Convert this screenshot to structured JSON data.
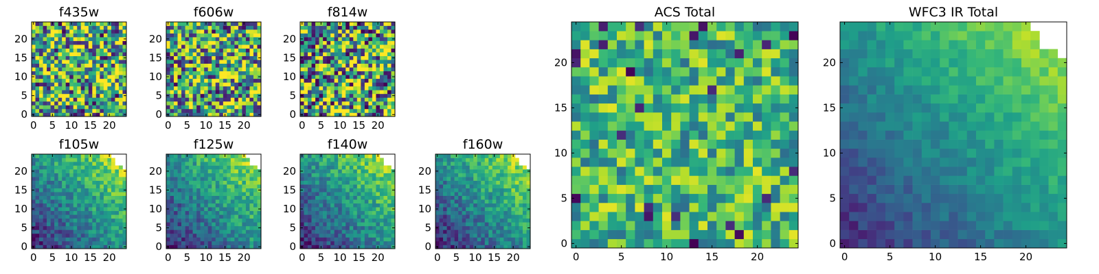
{
  "chart_data": [
    {
      "type": "heatmap",
      "title": "f435w",
      "xlim": [
        0,
        24
      ],
      "ylim": [
        0,
        24
      ],
      "xticks": [
        0,
        5,
        10,
        15,
        20
      ],
      "yticks": [
        0,
        5,
        10,
        15,
        20
      ],
      "xtick_labels": [
        "0",
        "5",
        "10",
        "15",
        "20"
      ],
      "ytick_labels": [
        "0",
        "5",
        "10",
        "15",
        "20"
      ],
      "pattern": "noise",
      "level": 0.62,
      "spread": 0.55,
      "corner_mask": false,
      "seed": 11
    },
    {
      "type": "heatmap",
      "title": "f606w",
      "xlim": [
        0,
        24
      ],
      "ylim": [
        0,
        24
      ],
      "xticks": [
        0,
        5,
        10,
        15,
        20
      ],
      "yticks": [
        0,
        5,
        10,
        15,
        20
      ],
      "xtick_labels": [
        "0",
        "5",
        "10",
        "15",
        "20"
      ],
      "ytick_labels": [
        "0",
        "5",
        "10",
        "15",
        "20"
      ],
      "pattern": "noise",
      "level": 0.62,
      "spread": 0.55,
      "corner_mask": false,
      "seed": 23
    },
    {
      "type": "heatmap",
      "title": "f814w",
      "xlim": [
        0,
        24
      ],
      "ylim": [
        0,
        24
      ],
      "xticks": [
        0,
        5,
        10,
        15,
        20
      ],
      "yticks": [
        0,
        5,
        10,
        15,
        20
      ],
      "xtick_labels": [
        "0",
        "5",
        "10",
        "15",
        "20"
      ],
      "ytick_labels": [
        "0",
        "5",
        "10",
        "15",
        "20"
      ],
      "pattern": "noise",
      "level": 0.58,
      "spread": 0.6,
      "corner_mask": false,
      "seed": 37
    },
    {
      "type": "heatmap",
      "title": "f105w",
      "xlim": [
        0,
        24
      ],
      "ylim": [
        0,
        24
      ],
      "xticks": [
        0,
        5,
        10,
        15,
        20
      ],
      "yticks": [
        0,
        5,
        10,
        15,
        20
      ],
      "xtick_labels": [
        "0",
        "5",
        "10",
        "15",
        "20"
      ],
      "ytick_labels": [
        "0",
        "5",
        "10",
        "15",
        "20"
      ],
      "pattern": "gradient",
      "level": 0.6,
      "spread": 0.35,
      "corner_mask": true,
      "seed": 41
    },
    {
      "type": "heatmap",
      "title": "f125w",
      "xlim": [
        0,
        24
      ],
      "ylim": [
        0,
        24
      ],
      "xticks": [
        0,
        5,
        10,
        15,
        20
      ],
      "yticks": [
        0,
        5,
        10,
        15,
        20
      ],
      "xtick_labels": [
        "0",
        "5",
        "10",
        "15",
        "20"
      ],
      "ytick_labels": [
        "0",
        "5",
        "10",
        "15",
        "20"
      ],
      "pattern": "gradient",
      "level": 0.55,
      "spread": 0.35,
      "corner_mask": true,
      "seed": 53
    },
    {
      "type": "heatmap",
      "title": "f140w",
      "xlim": [
        0,
        24
      ],
      "ylim": [
        0,
        24
      ],
      "xticks": [
        0,
        5,
        10,
        15,
        20
      ],
      "yticks": [
        0,
        5,
        10,
        15,
        20
      ],
      "xtick_labels": [
        "0",
        "5",
        "10",
        "15",
        "20"
      ],
      "ytick_labels": [
        "0",
        "5",
        "10",
        "15",
        "20"
      ],
      "pattern": "gradient",
      "level": 0.55,
      "spread": 0.35,
      "corner_mask": true,
      "seed": 67
    },
    {
      "type": "heatmap",
      "title": "f160w",
      "xlim": [
        0,
        24
      ],
      "ylim": [
        0,
        24
      ],
      "xticks": [
        0,
        5,
        10,
        15,
        20
      ],
      "yticks": [
        0,
        5,
        10,
        15,
        20
      ],
      "xtick_labels": [
        "0",
        "5",
        "10",
        "15",
        "20"
      ],
      "ytick_labels": [
        "0",
        "5",
        "10",
        "15",
        "20"
      ],
      "pattern": "gradient",
      "level": 0.5,
      "spread": 0.35,
      "corner_mask": true,
      "seed": 79
    },
    {
      "type": "heatmap",
      "title": "ACS Total",
      "xlim": [
        0,
        24
      ],
      "ylim": [
        0,
        24
      ],
      "xticks": [
        0,
        5,
        10,
        15,
        20
      ],
      "yticks": [
        0,
        5,
        10,
        15,
        20
      ],
      "xtick_labels": [
        "0",
        "5",
        "10",
        "15",
        "20"
      ],
      "ytick_labels": [
        "0",
        "5",
        "10",
        "15",
        "20"
      ],
      "pattern": "noise",
      "level": 0.66,
      "spread": 0.3,
      "corner_mask": false,
      "seed": 97
    },
    {
      "type": "heatmap",
      "title": "WFC3 IR Total",
      "xlim": [
        0,
        24
      ],
      "ylim": [
        0,
        24
      ],
      "xticks": [
        0,
        5,
        10,
        15,
        20
      ],
      "yticks": [
        0,
        5,
        10,
        15,
        20
      ],
      "xtick_labels": [
        "0",
        "5",
        "10",
        "15",
        "20"
      ],
      "ytick_labels": [
        "0",
        "5",
        "10",
        "15",
        "20"
      ],
      "pattern": "gradient",
      "level": 0.5,
      "spread": 0.18,
      "corner_mask": true,
      "seed": 101
    }
  ],
  "colormap": {
    "name": "viridis",
    "stops": [
      "#440154",
      "#482777",
      "#3e4989",
      "#31688e",
      "#26828e",
      "#1f9e89",
      "#35b779",
      "#6ece58",
      "#b5de2b",
      "#fde725"
    ]
  }
}
